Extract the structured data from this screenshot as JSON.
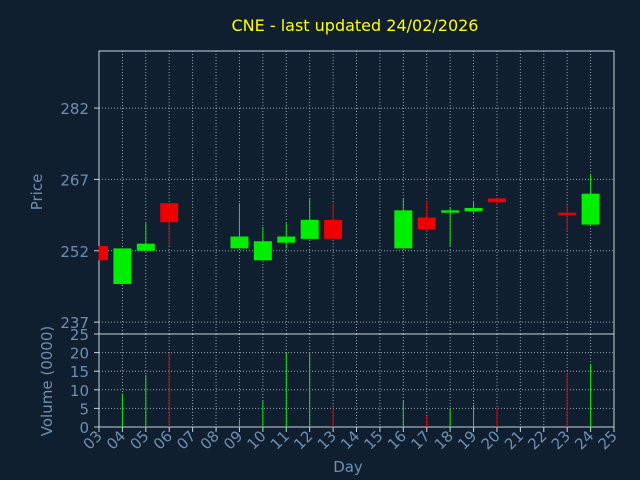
{
  "chart_data": {
    "title": "CNE - last updated 24/02/2026",
    "type": "candlestick",
    "xlabel": "Day",
    "x_ticks": [
      "03",
      "04",
      "05",
      "06",
      "07",
      "08",
      "09",
      "10",
      "11",
      "12",
      "13",
      "14",
      "15",
      "16",
      "17",
      "18",
      "19",
      "20",
      "21",
      "22",
      "23",
      "24",
      "25"
    ],
    "price_panel": {
      "ylabel": "Price",
      "ylim": [
        234.5,
        294
      ],
      "y_ticks": [
        237,
        252,
        267,
        282
      ],
      "candles": [
        {
          "day": "03",
          "open": 253.0,
          "high": 253.0,
          "low": 250.0,
          "close": 250.0
        },
        {
          "day": "04",
          "open": 245.0,
          "high": 252.5,
          "low": 245.0,
          "close": 252.5
        },
        {
          "day": "05",
          "open": 252.0,
          "high": 257.8,
          "low": 252.0,
          "close": 253.5
        },
        {
          "day": "06",
          "open": 262.0,
          "high": 262.0,
          "low": 253.0,
          "close": 258.0
        },
        {
          "day": "09",
          "open": 252.5,
          "high": 262.0,
          "low": 252.5,
          "close": 255.0
        },
        {
          "day": "10",
          "open": 250.0,
          "high": 257.0,
          "low": 250.0,
          "close": 254.0
        },
        {
          "day": "11",
          "open": 253.7,
          "high": 257.8,
          "low": 252.5,
          "close": 255.0
        },
        {
          "day": "12",
          "open": 254.5,
          "high": 263.0,
          "low": 254.5,
          "close": 258.5
        },
        {
          "day": "13",
          "open": 258.5,
          "high": 262.0,
          "low": 254.5,
          "close": 254.5
        },
        {
          "day": "16",
          "open": 252.5,
          "high": 263.0,
          "low": 252.5,
          "close": 260.5
        },
        {
          "day": "17",
          "open": 259.0,
          "high": 262.5,
          "low": 256.0,
          "close": 256.5
        },
        {
          "day": "18",
          "open": 260.0,
          "high": 261.0,
          "low": 253.0,
          "close": 260.5
        },
        {
          "day": "19",
          "open": 260.3,
          "high": 262.5,
          "low": 260.0,
          "close": 261.0
        },
        {
          "day": "20",
          "open": 263.0,
          "high": 263.0,
          "low": 261.5,
          "close": 262.2
        },
        {
          "day": "23",
          "open": 260.0,
          "high": 261.5,
          "low": 256.0,
          "close": 259.5
        },
        {
          "day": "24",
          "open": 257.5,
          "high": 268.0,
          "low": 257.5,
          "close": 264.0
        }
      ]
    },
    "volume_panel": {
      "ylabel": "Volume (0000)",
      "ylim": [
        0,
        25
      ],
      "y_ticks": [
        0,
        5,
        10,
        15,
        20,
        25
      ],
      "bars": [
        {
          "day": "04",
          "value": 9,
          "direction": "up"
        },
        {
          "day": "05",
          "value": 14,
          "direction": "up"
        },
        {
          "day": "06",
          "value": 20,
          "direction": "down"
        },
        {
          "day": "09",
          "value": 2,
          "direction": "up"
        },
        {
          "day": "10",
          "value": 7,
          "direction": "up"
        },
        {
          "day": "11",
          "value": 20,
          "direction": "up"
        },
        {
          "day": "12",
          "value": 20,
          "direction": "up"
        },
        {
          "day": "13",
          "value": 5,
          "direction": "down"
        },
        {
          "day": "16",
          "value": 7,
          "direction": "up"
        },
        {
          "day": "17",
          "value": 3,
          "direction": "down"
        },
        {
          "day": "18",
          "value": 5,
          "direction": "up"
        },
        {
          "day": "19",
          "value": 6,
          "direction": "up"
        },
        {
          "day": "20",
          "value": 5,
          "direction": "down"
        },
        {
          "day": "23",
          "value": 14.5,
          "direction": "down"
        },
        {
          "day": "24",
          "value": 17,
          "direction": "up"
        }
      ]
    },
    "grid": true,
    "colors": {
      "background": "#0f1f30",
      "up": "#00ee00",
      "down": "#ee0000",
      "title": "#ffff00",
      "axis_text": "#6e8fb0",
      "frame": "#c8d0d8"
    }
  }
}
